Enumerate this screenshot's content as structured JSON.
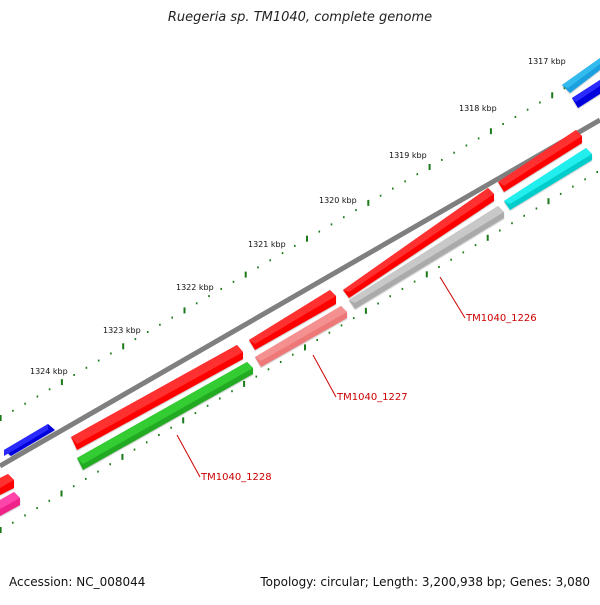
{
  "title": "Ruegeria sp. TM1040, complete genome",
  "footer": {
    "accession": "Accession: NC_008044",
    "stats": "Topology: circular; Length: 3,200,938 bp; Genes: 3,080"
  },
  "scale_labels": [
    "1317 kbp",
    "1318 kbp",
    "1319 kbp",
    "1320 kbp",
    "1321 kbp",
    "1322 kbp",
    "1323 kbp",
    "1324 kbp"
  ],
  "gene_labels": [
    "TM1040_1226",
    "TM1040_1227",
    "TM1040_1228"
  ],
  "colors": {
    "backbone": "#808080",
    "tick": "#1a7a1a",
    "gene_forward": "#ff0000",
    "gene_label": "#cc0000"
  }
}
